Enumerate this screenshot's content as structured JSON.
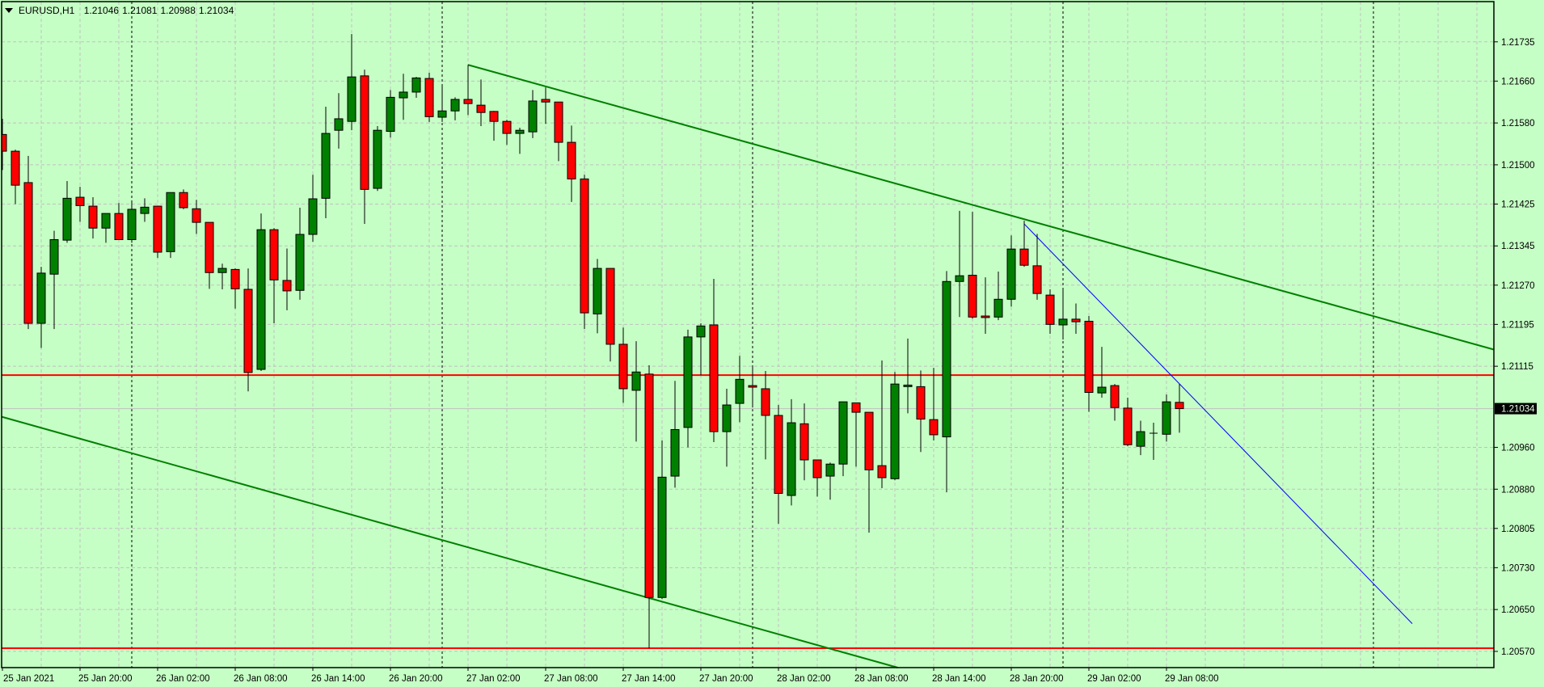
{
  "header": {
    "symbol": "EURUSD,H1",
    "open": "1.21046",
    "high": "1.21081",
    "low": "1.20988",
    "close": "1.21034",
    "menu_icon": "triangle-down-icon"
  },
  "colors": {
    "background": "#c6ffc6",
    "grid": "#c0c0c0",
    "bull": "#008000",
    "bear": "#ff0000",
    "outline": "#000000",
    "trendline": "#008000",
    "blue_line": "#0000ff",
    "horizontal_line": "#ff0000",
    "bid_line": "#c0c0c0"
  },
  "chart_data": {
    "type": "candlestick",
    "title": "EURUSD,H1",
    "timeframe": "H1",
    "ylim": [
      1.20539,
      1.21815
    ],
    "grid": true,
    "columns": [
      "time",
      "open",
      "high",
      "low",
      "close"
    ],
    "ohlc": [
      [
        "25 Jan 14:00",
        1.21558,
        1.21588,
        1.2149,
        1.21526
      ],
      [
        "25 Jan 15:00",
        1.21526,
        1.21529,
        1.21425,
        1.21461
      ],
      [
        "25 Jan 16:00",
        1.21466,
        1.21517,
        1.21186,
        1.21197
      ],
      [
        "25 Jan 17:00",
        1.21197,
        1.21305,
        1.2115,
        1.21293
      ],
      [
        "25 Jan 18:00",
        1.21291,
        1.21374,
        1.21186,
        1.21357
      ],
      [
        "25 Jan 19:00",
        1.21356,
        1.21469,
        1.21351,
        1.21436
      ],
      [
        "25 Jan 20:00",
        1.21438,
        1.21458,
        1.21391,
        1.21422
      ],
      [
        "25 Jan 21:00",
        1.21421,
        1.21438,
        1.21359,
        1.21379
      ],
      [
        "25 Jan 22:00",
        1.21379,
        1.21407,
        1.21351,
        1.21407
      ],
      [
        "25 Jan 23:00",
        1.21407,
        1.21427,
        1.21357,
        1.21357
      ],
      [
        "26 Jan 00:00",
        1.21357,
        1.21432,
        1.21351,
        1.21415
      ],
      [
        "26 Jan 01:00",
        1.21407,
        1.21436,
        1.21391,
        1.21419
      ],
      [
        "26 Jan 02:00",
        1.21421,
        1.21421,
        1.21322,
        1.21333
      ],
      [
        "26 Jan 03:00",
        1.21334,
        1.21447,
        1.21322,
        1.21447
      ],
      [
        "26 Jan 04:00",
        1.21447,
        1.21453,
        1.21415,
        1.21418
      ],
      [
        "26 Jan 05:00",
        1.21416,
        1.21433,
        1.21368,
        1.2139
      ],
      [
        "26 Jan 06:00",
        1.2139,
        1.2139,
        1.21263,
        1.21294
      ],
      [
        "26 Jan 07:00",
        1.21294,
        1.21311,
        1.21262,
        1.21302
      ],
      [
        "26 Jan 08:00",
        1.213,
        1.21302,
        1.21225,
        1.21263
      ],
      [
        "26 Jan 09:00",
        1.21262,
        1.21302,
        1.21067,
        1.21103
      ],
      [
        "26 Jan 10:00",
        1.21109,
        1.21407,
        1.21106,
        1.21376
      ],
      [
        "26 Jan 11:00",
        1.21376,
        1.21379,
        1.21197,
        1.2128
      ],
      [
        "26 Jan 12:00",
        1.21279,
        1.2134,
        1.21222,
        1.21259
      ],
      [
        "26 Jan 13:00",
        1.2126,
        1.21418,
        1.21242,
        1.21367
      ],
      [
        "26 Jan 14:00",
        1.21367,
        1.21481,
        1.21353,
        1.21435
      ],
      [
        "26 Jan 15:00",
        1.21436,
        1.21611,
        1.21398,
        1.2156
      ],
      [
        "26 Jan 16:00",
        1.21566,
        1.21637,
        1.21531,
        1.21588
      ],
      [
        "26 Jan 17:00",
        1.21583,
        1.2175,
        1.21566,
        1.21668
      ],
      [
        "26 Jan 18:00",
        1.2167,
        1.21682,
        1.21387,
        1.21453
      ],
      [
        "26 Jan 19:00",
        1.21455,
        1.21574,
        1.2145,
        1.21566
      ],
      [
        "26 Jan 20:00",
        1.21564,
        1.21643,
        1.21552,
        1.21629
      ],
      [
        "26 Jan 21:00",
        1.21628,
        1.21674,
        1.21586,
        1.21639
      ],
      [
        "26 Jan 22:00",
        1.21639,
        1.21668,
        1.21628,
        1.21666
      ],
      [
        "26 Jan 23:00",
        1.21665,
        1.21676,
        1.21582,
        1.21592
      ],
      [
        "27 Jan 00:00",
        1.21591,
        1.21654,
        1.21582,
        1.21603
      ],
      [
        "27 Jan 01:00",
        1.21603,
        1.21629,
        1.21585,
        1.21625
      ],
      [
        "27 Jan 02:00",
        1.21625,
        1.21691,
        1.21595,
        1.21617
      ],
      [
        "27 Jan 03:00",
        1.21614,
        1.21663,
        1.21574,
        1.216
      ],
      [
        "27 Jan 04:00",
        1.21602,
        1.21603,
        1.21546,
        1.21583
      ],
      [
        "27 Jan 05:00",
        1.21583,
        1.21586,
        1.21538,
        1.2156
      ],
      [
        "27 Jan 06:00",
        1.2156,
        1.21571,
        1.21521,
        1.21566
      ],
      [
        "27 Jan 07:00",
        1.21563,
        1.21643,
        1.21551,
        1.21622
      ],
      [
        "27 Jan 08:00",
        1.21625,
        1.21648,
        1.21578,
        1.2162
      ],
      [
        "27 Jan 09:00",
        1.2162,
        1.2162,
        1.21507,
        1.21543
      ],
      [
        "27 Jan 10:00",
        1.21543,
        1.21575,
        1.21429,
        1.21473
      ],
      [
        "27 Jan 11:00",
        1.21473,
        1.21481,
        1.21186,
        1.21217
      ],
      [
        "27 Jan 12:00",
        1.21215,
        1.2132,
        1.21178,
        1.21302
      ],
      [
        "27 Jan 13:00",
        1.21302,
        1.21302,
        1.21124,
        1.21157
      ],
      [
        "27 Jan 14:00",
        1.21157,
        1.21189,
        1.21045,
        1.21072
      ],
      [
        "27 Jan 15:00",
        1.21069,
        1.21163,
        1.20971,
        1.21104
      ],
      [
        "27 Jan 16:00",
        1.211,
        1.21117,
        1.20576,
        1.20673
      ],
      [
        "27 Jan 17:00",
        1.20673,
        1.20973,
        1.2067,
        1.20903
      ],
      [
        "27 Jan 18:00",
        1.20905,
        1.21087,
        1.20883,
        1.20994
      ],
      [
        "27 Jan 19:00",
        1.20998,
        1.21185,
        1.2096,
        1.21171
      ],
      [
        "27 Jan 20:00",
        1.21171,
        1.21197,
        1.21098,
        1.21192
      ],
      [
        "27 Jan 21:00",
        1.21194,
        1.21282,
        1.2097,
        1.2099
      ],
      [
        "27 Jan 22:00",
        1.2099,
        1.21072,
        1.20923,
        1.21041
      ],
      [
        "27 Jan 23:00",
        1.21044,
        1.21135,
        1.21008,
        1.2109
      ],
      [
        "28 Jan 00:00",
        1.21078,
        1.21117,
        1.21036,
        1.21075
      ],
      [
        "28 Jan 01:00",
        1.21072,
        1.21106,
        1.20937,
        1.21021
      ],
      [
        "28 Jan 02:00",
        1.21021,
        1.21041,
        1.20814,
        1.20872
      ],
      [
        "28 Jan 03:00",
        1.20868,
        1.21052,
        1.20849,
        1.21007
      ],
      [
        "28 Jan 04:00",
        1.21005,
        1.21044,
        1.20897,
        1.20936
      ],
      [
        "28 Jan 05:00",
        1.20936,
        1.20936,
        1.20866,
        1.20902
      ],
      [
        "28 Jan 06:00",
        1.20905,
        1.20931,
        1.2086,
        1.20928
      ],
      [
        "28 Jan 07:00",
        1.20928,
        1.21047,
        1.20905,
        1.21047
      ],
      [
        "28 Jan 08:00",
        1.21045,
        1.21045,
        1.20923,
        1.21027
      ],
      [
        "28 Jan 09:00",
        1.21027,
        1.21027,
        1.20797,
        1.20917
      ],
      [
        "28 Jan 10:00",
        1.20925,
        1.21126,
        1.20882,
        1.20902
      ],
      [
        "28 Jan 11:00",
        1.209,
        1.21104,
        1.20897,
        1.21081
      ],
      [
        "28 Jan 12:00",
        1.21076,
        1.21168,
        1.21025,
        1.21079
      ],
      [
        "28 Jan 13:00",
        1.21076,
        1.21107,
        1.20951,
        1.21014
      ],
      [
        "28 Jan 14:00",
        1.21013,
        1.21112,
        1.20973,
        1.20984
      ],
      [
        "28 Jan 15:00",
        1.2098,
        1.21297,
        1.20874,
        1.21277
      ],
      [
        "28 Jan 16:00",
        1.21277,
        1.21412,
        1.21209,
        1.21288
      ],
      [
        "28 Jan 17:00",
        1.21289,
        1.2141,
        1.21206,
        1.21209
      ],
      [
        "28 Jan 18:00",
        1.21211,
        1.21285,
        1.21177,
        1.21208
      ],
      [
        "28 Jan 19:00",
        1.21209,
        1.21296,
        1.21203,
        1.21243
      ],
      [
        "28 Jan 20:00",
        1.21243,
        1.21365,
        1.21229,
        1.21339
      ],
      [
        "28 Jan 21:00",
        1.21339,
        1.21393,
        1.21305,
        1.21308
      ],
      [
        "28 Jan 22:00",
        1.21307,
        1.21368,
        1.21242,
        1.21254
      ],
      [
        "28 Jan 23:00",
        1.21251,
        1.21262,
        1.21177,
        1.21195
      ],
      [
        "29 Jan 00:00",
        1.21194,
        1.21265,
        1.21166,
        1.21205
      ],
      [
        "29 Jan 01:00",
        1.21205,
        1.21235,
        1.21177,
        1.212
      ],
      [
        "29 Jan 02:00",
        1.21201,
        1.21211,
        1.21028,
        1.21065
      ],
      [
        "29 Jan 03:00",
        1.21064,
        1.21152,
        1.21055,
        1.21075
      ],
      [
        "29 Jan 04:00",
        1.21078,
        1.21081,
        1.21011,
        1.21036
      ],
      [
        "29 Jan 05:00",
        1.21035,
        1.21055,
        1.20962,
        1.20965
      ],
      [
        "29 Jan 06:00",
        1.20962,
        1.21011,
        1.20945,
        1.2099
      ],
      [
        "29 Jan 07:00",
        1.20987,
        1.21007,
        1.20936,
        1.20987
      ],
      [
        "29 Jan 08:00",
        1.20985,
        1.21061,
        1.20971,
        1.21047
      ],
      [
        "29 Jan 09:00",
        1.21046,
        1.21081,
        1.20988,
        1.21034
      ]
    ],
    "price_axis": {
      "labels": [
        "1.21735",
        "1.21660",
        "1.21580",
        "1.21500",
        "1.21425",
        "1.21345",
        "1.21270",
        "1.21195",
        "1.21115",
        "1.20960",
        "1.20880",
        "1.20805",
        "1.20730",
        "1.20650",
        "1.20570"
      ],
      "current_price": "1.21034"
    },
    "time_axis": {
      "labels": [
        "25 Jan 2021",
        "25 Jan 20:00",
        "26 Jan 02:00",
        "26 Jan 08:00",
        "26 Jan 14:00",
        "26 Jan 20:00",
        "27 Jan 02:00",
        "27 Jan 08:00",
        "27 Jan 14:00",
        "27 Jan 20:00",
        "28 Jan 02:00",
        "28 Jan 08:00",
        "28 Jan 14:00",
        "28 Jan 20:00",
        "29 Jan 02:00",
        "29 Jan 08:00"
      ]
    },
    "period_separators": [
      "26 Jan 00:00",
      "27 Jan 00:00",
      "28 Jan 00:00",
      "29 Jan 00:00",
      "30 Jan 00:00"
    ],
    "objects": {
      "horizontal_lines": [
        1.21098,
        1.20576
      ],
      "trendlines": [
        {
          "color": "#008000",
          "ray": true,
          "p1": {
            "time": "27 Jan 02:00",
            "price": 1.21691
          },
          "p2": {
            "time": "28 Jan 21:00",
            "price": 1.21396
          }
        },
        {
          "color": "#008000",
          "ray": true,
          "extend_left": true,
          "p1": {
            "time": "25 Jan 14:00",
            "price": 1.21018
          },
          "p2": {
            "time": "27 Jan 16:00",
            "price": 1.20672
          }
        },
        {
          "color": "#0000ff",
          "ray": false,
          "p1": {
            "time": "28 Jan 21:00",
            "price": 1.21387
          },
          "p2": {
            "time": "30 Jan 03:00",
            "price": 1.20623
          }
        }
      ]
    }
  }
}
